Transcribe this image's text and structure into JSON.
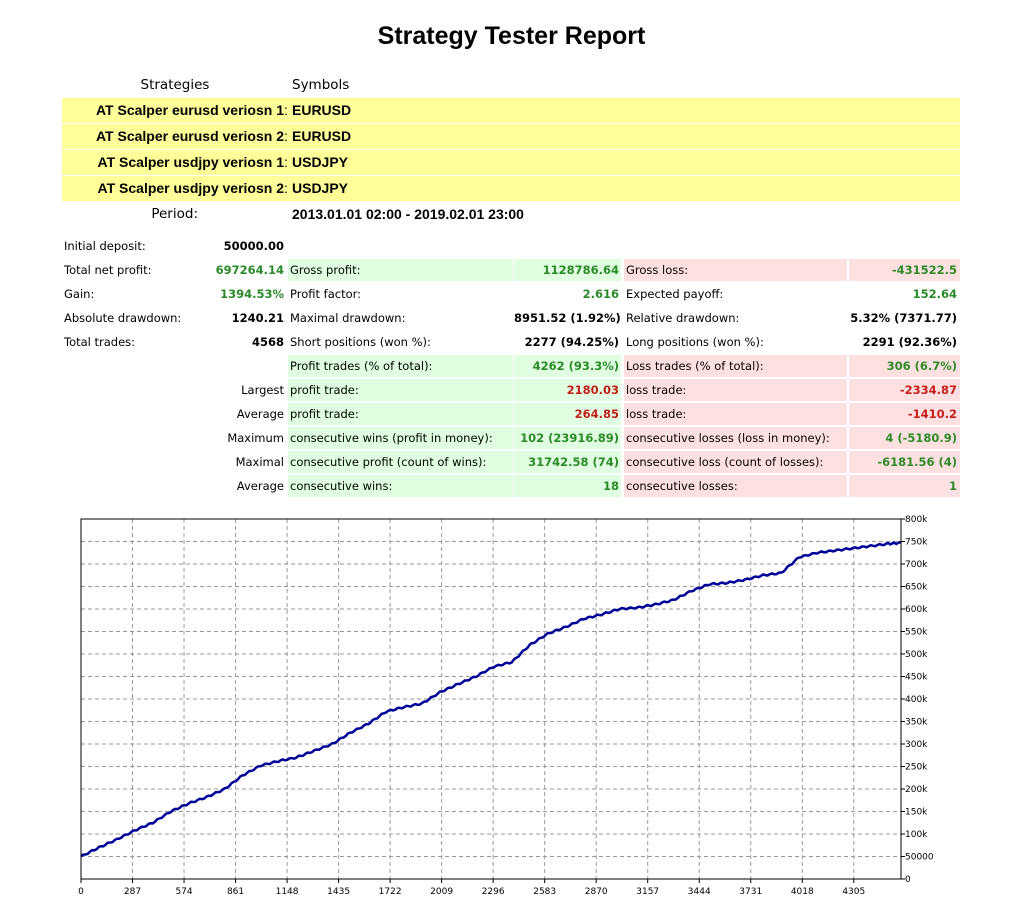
{
  "title": "Strategy Tester Report",
  "headers": {
    "strategies": "Strategies",
    "symbols": "Symbols"
  },
  "strategies": [
    {
      "name": "AT Scalper eurusd veriosn 1",
      "colon": ":",
      "symbol": "EURUSD"
    },
    {
      "name": "AT Scalper eurusd veriosn 2",
      "colon": ":",
      "symbol": "EURUSD"
    },
    {
      "name": "AT Scalper usdjpy veriosn 1",
      "colon": ":",
      "symbol": "USDJPY"
    },
    {
      "name": "AT Scalper usdjpy veriosn 2",
      "colon": ":",
      "symbol": "USDJPY"
    }
  ],
  "period": {
    "label": "Period:",
    "value": "2013.01.01 02:00 - 2019.02.01 23:00"
  },
  "stats": {
    "initial_deposit": {
      "label": "Initial deposit:",
      "value": "50000.00"
    },
    "total_net_profit": {
      "label": "Total net profit:",
      "value": "697264.14"
    },
    "gain": {
      "label": "Gain:",
      "value": "1394.53%"
    },
    "absolute_drawdown": {
      "label": "Absolute drawdown:",
      "value": "1240.21"
    },
    "total_trades": {
      "label": "Total trades:",
      "value": "4568"
    },
    "gross_profit": {
      "label": "Gross profit:",
      "value": "1128786.64"
    },
    "profit_factor": {
      "label": "Profit factor:",
      "value": "2.616"
    },
    "maximal_drawdown": {
      "label": "Maximal drawdown:",
      "value": "8951.52 (1.92%)"
    },
    "short_positions": {
      "label": "Short positions (won %):",
      "value": "2277 (94.25%)"
    },
    "profit_trades": {
      "label": "Profit trades (% of total):",
      "value": "4262 (93.3%)"
    },
    "largest_profit": {
      "label": "profit trade:",
      "value": "2180.03"
    },
    "average_profit": {
      "label": "profit trade:",
      "value": "264.85"
    },
    "max_cons_wins": {
      "label": "consecutive wins (profit in money):",
      "value": "102 (23916.89)"
    },
    "max_cons_profit": {
      "label": "consecutive profit (count of wins):",
      "value": "31742.58 (74)"
    },
    "avg_cons_wins": {
      "label": "consecutive wins:",
      "value": "18"
    },
    "gross_loss": {
      "label": "Gross loss:",
      "value": "-431522.5"
    },
    "expected_payoff": {
      "label": "Expected payoff:",
      "value": "152.64"
    },
    "relative_drawdown": {
      "label": "Relative drawdown:",
      "value": "5.32% (7371.77)"
    },
    "long_positions": {
      "label": "Long positions (won %):",
      "value": "2291 (92.36%)"
    },
    "loss_trades": {
      "label": "Loss trades (% of total):",
      "value": "306 (6.7%)"
    },
    "largest_loss": {
      "label": "loss trade:",
      "value": "-2334.87"
    },
    "average_loss": {
      "label": "loss trade:",
      "value": "-1410.2"
    },
    "max_cons_losses": {
      "label": "consecutive losses (loss in money):",
      "value": "4 (-5180.9)"
    },
    "max_cons_loss": {
      "label": "consecutive loss (count of losses):",
      "value": "-6181.56 (4)"
    },
    "avg_cons_losses": {
      "label": "consecutive losses:",
      "value": "1"
    }
  },
  "row_labels": {
    "largest": "Largest",
    "average": "Average",
    "maximum": "Maximum",
    "maximal": "Maximal",
    "average2": "Average"
  },
  "colors": {
    "positive": "#2a8a2a",
    "negative": "#c31d1d",
    "highlight": "#ffff99",
    "green_bg": "#e0ffe0",
    "red_bg": "#ffe0e0",
    "line": "#000099"
  },
  "chart_data": {
    "type": "line",
    "xlim": [
      0,
      4568
    ],
    "ylim": [
      0,
      800000
    ],
    "x_ticks": [
      "0",
      "287",
      "574",
      "861",
      "1148",
      "1435",
      "1722",
      "2009",
      "2296",
      "2583",
      "2870",
      "3157",
      "3444",
      "3731",
      "4018",
      "4305"
    ],
    "y_ticks": [
      "0",
      "50000",
      "100k",
      "150k",
      "200k",
      "250k",
      "300k",
      "350k",
      "400k",
      "450k",
      "500k",
      "550k",
      "600k",
      "650k",
      "700k",
      "750k",
      "800k"
    ],
    "grid": true,
    "series": [
      {
        "x": [
          0,
          100,
          200,
          300,
          400,
          500,
          600,
          700,
          800,
          900,
          1000,
          1100,
          1200,
          1300,
          1400,
          1500,
          1600,
          1700,
          1800,
          1900,
          2000,
          2100,
          2200,
          2300,
          2400,
          2500,
          2600,
          2700,
          2800,
          2900,
          3000,
          3100,
          3200,
          3300,
          3400,
          3500,
          3600,
          3700,
          3800,
          3900,
          4000,
          4100,
          4200,
          4300,
          4400,
          4500,
          4568
        ],
        "y": [
          50000,
          70000,
          88000,
          108000,
          125000,
          150000,
          168000,
          182000,
          200000,
          230000,
          252000,
          262000,
          270000,
          285000,
          300000,
          325000,
          345000,
          372000,
          382000,
          390000,
          415000,
          433000,
          450000,
          472000,
          482000,
          520000,
          545000,
          560000,
          578000,
          588000,
          600000,
          603000,
          610000,
          620000,
          640000,
          655000,
          658000,
          665000,
          675000,
          680000,
          715000,
          725000,
          730000,
          735000,
          740000,
          745000,
          747000
        ]
      }
    ]
  }
}
